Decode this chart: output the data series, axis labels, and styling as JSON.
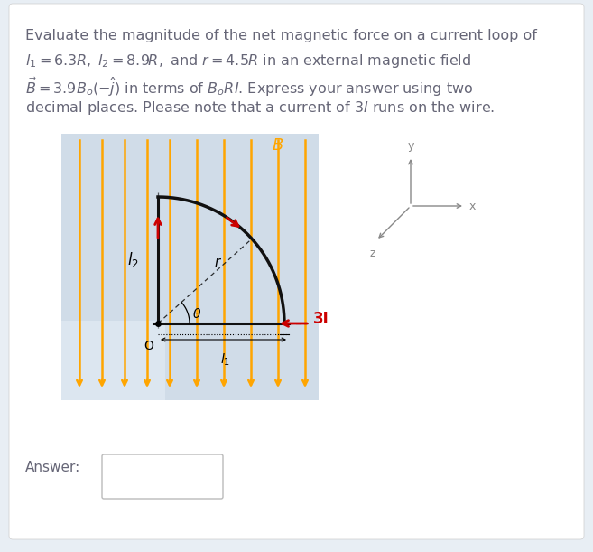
{
  "bg_outer": "#e8eef4",
  "bg_white": "#ffffff",
  "bg_diagram": "#dce6f0",
  "bg_diagram_light": "#e8eef4",
  "text_color": "#666677",
  "arrow_color": "#FFA500",
  "wire_color": "#111111",
  "red_color": "#cc0000",
  "gray_color": "#888888",
  "answer_box_color": "#cccccc",
  "title_lines": [
    "Evaluate the magnitude of the net magnetic force on a current loop of",
    "$l_1 = 6.3R,\\; l_2 = 8.9R,$ and $r = 4.5R$ in an external magnetic field",
    "$\\vec{B} = 3.9B_o(-\\hat{j})$ in terms of $B_oRI$. Express your answer using two",
    "decimal places. Please note that a current of $3I$ runs on the wire."
  ],
  "font_size_text": 11.5,
  "font_size_labels": 11,
  "font_size_small": 9
}
